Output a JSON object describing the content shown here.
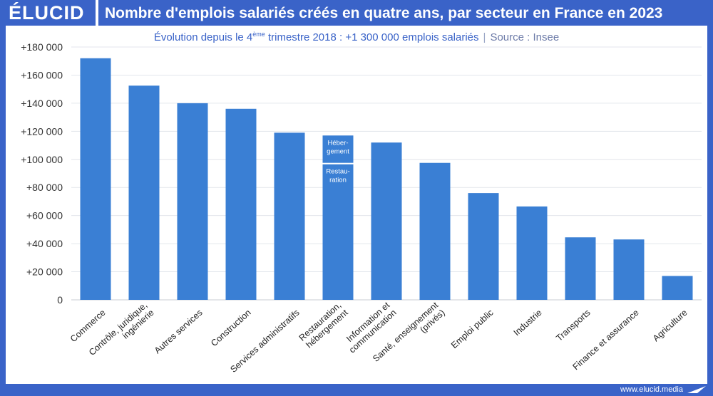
{
  "header": {
    "logo": "ÉLUCID",
    "title": "Nombre d'emplois salariés créés en quatre ans, par secteur en France en 2023"
  },
  "subtitle": {
    "evolution_prefix": "Évolution depuis le 4",
    "evolution_sup": "ème",
    "evolution_suffix": " trimestre 2018 : +1 300 000 emplois salariés",
    "separator": "|",
    "source": "Source : Insee"
  },
  "footer": {
    "site": "www.elucid.media"
  },
  "colors": {
    "brand": "#3a63c8",
    "bar": "#3a7fd4",
    "grid": "#e3e6ec",
    "tick_text": "#333333"
  },
  "chart_data": {
    "type": "bar",
    "title": "Nombre d'emplois salariés créés en quatre ans, par secteur en France en 2023",
    "xlabel": "",
    "ylabel": "",
    "ylim": [
      0,
      180000
    ],
    "yticks": [
      0,
      20000,
      40000,
      60000,
      80000,
      100000,
      120000,
      140000,
      160000,
      180000
    ],
    "ytick_labels": [
      "0",
      "+20 000",
      "+40 000",
      "+60 000",
      "+80 000",
      "+100 000",
      "+120 000",
      "+140 000",
      "+160 000",
      "+180 000"
    ],
    "grid": true,
    "categories": [
      "Commerce",
      "Contrôle, juridique, ingénierie",
      "Autres services",
      "Construction",
      "Services administratifs",
      "Restauration, hébergement",
      "Information et communication",
      "Santé, enseignement (privés)",
      "Emploi public",
      "Industrie",
      "Transports",
      "Finance et assurance",
      "Agriculture"
    ],
    "category_label_lines": [
      [
        "Commerce"
      ],
      [
        "Contrôle, juridique,",
        "ingénierie"
      ],
      [
        "Autres services"
      ],
      [
        "Construction"
      ],
      [
        "Services administratifs"
      ],
      [
        "Restauration,",
        "hébergement"
      ],
      [
        "Information et",
        "communication"
      ],
      [
        "Santé, enseignement",
        "(privés)"
      ],
      [
        "Emploi public"
      ],
      [
        "Industrie"
      ],
      [
        "Transports"
      ],
      [
        "Finance et assurance"
      ],
      [
        "Agriculture"
      ]
    ],
    "values": [
      172000,
      152500,
      140000,
      136000,
      119000,
      117000,
      112000,
      97500,
      76000,
      66500,
      44500,
      43000,
      17000
    ],
    "stacked_bar": {
      "category": "Restauration, hébergement",
      "segments": [
        {
          "name": "Restauration",
          "label_lines": [
            "Restau-",
            "ration"
          ],
          "value": 96500
        },
        {
          "name": "Hébergement",
          "label_lines": [
            "Héber-",
            "gement"
          ],
          "value": 20500
        }
      ]
    }
  }
}
